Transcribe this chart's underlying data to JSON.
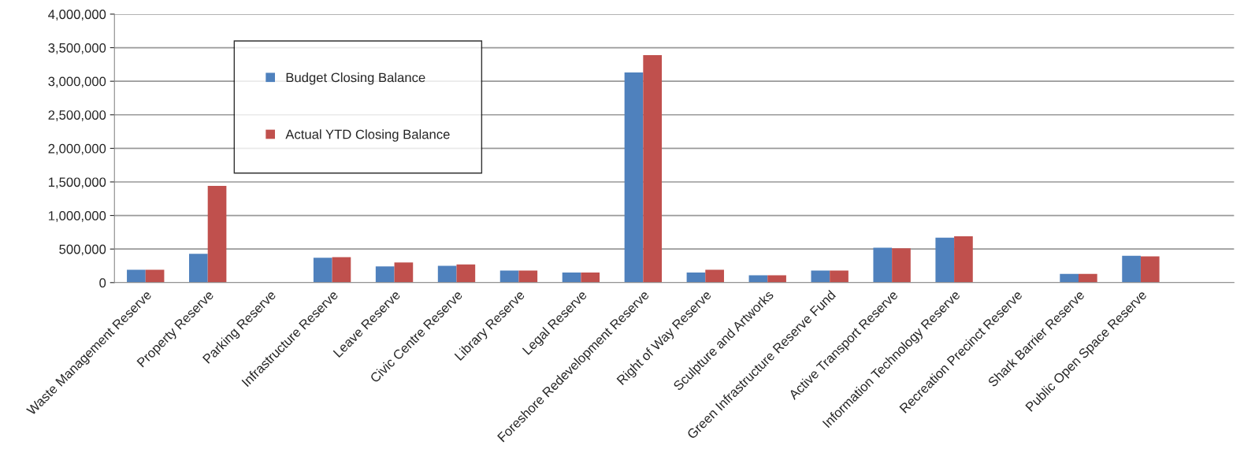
{
  "chart_data": {
    "type": "bar",
    "categories": [
      "Waste Management Reserve",
      "Property Reserve",
      "Parking Reserve",
      "Infrastructure Reserve",
      "Leave Reserve",
      "Civic Centre Reserve",
      "Library Reserve",
      "Legal Reserve",
      "Foreshore Redevelopment Reserve",
      "Right of Way Reserve",
      "Sculpture and Artworks",
      "Green Infrastructure Reserve Fund",
      "Active Transport Reserve",
      "Information Technology Reserve",
      "Recreation Precinct Reserve",
      "Shark Barrier Reserve",
      "Public Open Space Reserve",
      null
    ],
    "series": [
      {
        "name": "Budget Closing Balance",
        "color": "#4f81bd",
        "values": [
          190000,
          430000,
          0,
          370000,
          240000,
          250000,
          180000,
          150000,
          3130000,
          150000,
          110000,
          180000,
          520000,
          670000,
          0,
          130000,
          400000,
          null
        ]
      },
      {
        "name": "Actual YTD Closing Balance",
        "color": "#c0504d",
        "values": [
          190000,
          1440000,
          0,
          380000,
          300000,
          270000,
          180000,
          150000,
          3390000,
          190000,
          110000,
          180000,
          510000,
          690000,
          0,
          130000,
          390000,
          null
        ]
      }
    ],
    "ylim": [
      0,
      4000000
    ],
    "yticks": [
      {
        "value": 0,
        "label": "0"
      },
      {
        "value": 500000,
        "label": "500,000"
      },
      {
        "value": 1000000,
        "label": "1,000,000"
      },
      {
        "value": 1500000,
        "label": "1,500,000"
      },
      {
        "value": 2000000,
        "label": "2,000,000"
      },
      {
        "value": 2500000,
        "label": "2,500,000"
      },
      {
        "value": 3000000,
        "label": "3,000,000"
      },
      {
        "value": 3500000,
        "label": "3,500,000"
      },
      {
        "value": 4000000,
        "label": "4,000,000"
      }
    ],
    "grid": "y",
    "legend": "top left"
  }
}
